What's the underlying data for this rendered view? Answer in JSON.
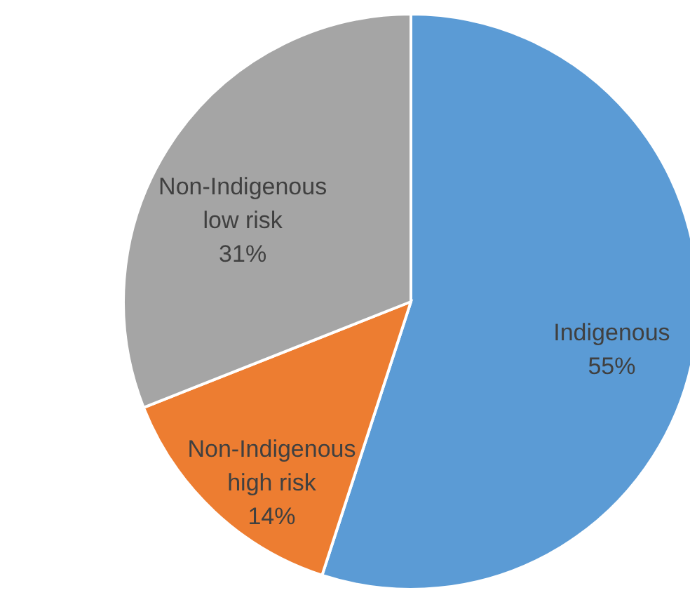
{
  "chart_data": {
    "type": "pie",
    "categories": [
      "Indigenous",
      "Non-Indigenous high risk",
      "Non-Indigenous low risk"
    ],
    "values": [
      55,
      14,
      31
    ],
    "colors": [
      "#5b9bd5",
      "#ed7d31",
      "#a5a5a5"
    ],
    "value_labels": [
      "55%",
      "14%",
      "31%"
    ]
  }
}
